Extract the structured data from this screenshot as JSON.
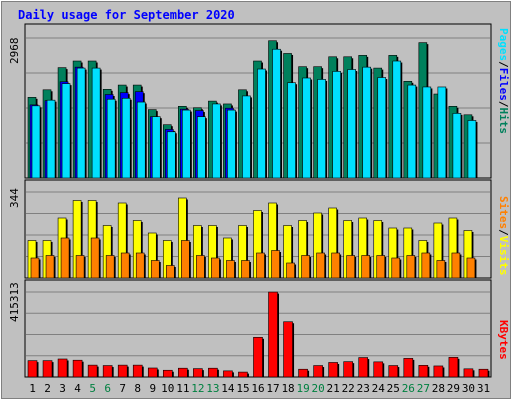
{
  "title": "Daily usage for September 2020",
  "colors": {
    "hits": "#00805c",
    "files": "#0000ff",
    "pages": "#00e0ff",
    "visits": "#ffff00",
    "sites": "#ff8000",
    "kbytes": "#ff0000",
    "weekend_label": "#008040",
    "weekday_label": "#000000",
    "plot_bg": "#c0c0c0",
    "grid": "#808080"
  },
  "panels": {
    "top": {
      "ymax_label": "2968",
      "right_labels": [
        "Pages",
        "Files",
        "Hits"
      ]
    },
    "middle": {
      "ymax_label": "344",
      "right_labels": [
        "Sites",
        "Visits"
      ]
    },
    "bottom": {
      "ymax_label": "415313",
      "right_labels": [
        "KBytes"
      ]
    }
  },
  "chart_data": [
    {
      "type": "bar",
      "title": "Daily usage for September 2020",
      "panel": "top",
      "categories": [
        "1",
        "2",
        "3",
        "4",
        "5",
        "6",
        "7",
        "8",
        "9",
        "10",
        "11",
        "12",
        "13",
        "14",
        "15",
        "16",
        "17",
        "18",
        "19",
        "20",
        "21",
        "22",
        "23",
        "24",
        "25",
        "26",
        "27",
        "28",
        "29",
        "30",
        "31"
      ],
      "ylim": [
        0,
        2968
      ],
      "series": [
        {
          "name": "Hits",
          "values": [
            1710,
            1870,
            2340,
            2480,
            2480,
            1880,
            1970,
            1970,
            1450,
            1130,
            1520,
            1490,
            1630,
            1570,
            1870,
            2480,
            2910,
            2640,
            2360,
            2360,
            2570,
            2570,
            2600,
            2330,
            2600,
            2050,
            2870,
            1780,
            1520,
            1340,
            0
          ]
        },
        {
          "name": "Files",
          "values": [
            1550,
            1640,
            2040,
            2350,
            0,
            1770,
            1810,
            1830,
            1300,
            1030,
            1460,
            1430,
            0,
            1480,
            0,
            0,
            0,
            0,
            0,
            0,
            0,
            0,
            0,
            0,
            0,
            0,
            0,
            0,
            0,
            0,
            0
          ]
        },
        {
          "name": "Pages",
          "values": [
            1530,
            1650,
            2000,
            2330,
            2330,
            1670,
            1690,
            1610,
            1300,
            980,
            1440,
            1300,
            1570,
            1440,
            1740,
            2310,
            2730,
            2020,
            2120,
            2090,
            2260,
            2300,
            2350,
            2130,
            2480,
            1970,
            1930,
            1930,
            1370,
            1220,
            0
          ]
        }
      ]
    },
    {
      "type": "bar",
      "panel": "middle",
      "categories": [
        "1",
        "2",
        "3",
        "4",
        "5",
        "6",
        "7",
        "8",
        "9",
        "10",
        "11",
        "12",
        "13",
        "14",
        "15",
        "16",
        "17",
        "18",
        "19",
        "20",
        "21",
        "22",
        "23",
        "24",
        "25",
        "26",
        "27",
        "28",
        "29",
        "30",
        "31"
      ],
      "ylim": [
        0,
        344
      ],
      "series": [
        {
          "name": "Visits",
          "values": [
            150,
            150,
            240,
            310,
            310,
            210,
            300,
            230,
            180,
            150,
            320,
            210,
            210,
            160,
            210,
            270,
            300,
            210,
            230,
            260,
            280,
            230,
            240,
            230,
            200,
            200,
            150,
            220,
            240,
            190,
            0
          ]
        },
        {
          "name": "Sites",
          "values": [
            80,
            90,
            160,
            90,
            160,
            90,
            100,
            100,
            70,
            50,
            150,
            90,
            80,
            70,
            70,
            100,
            110,
            60,
            90,
            100,
            100,
            90,
            90,
            90,
            80,
            90,
            100,
            70,
            100,
            80,
            0
          ]
        }
      ]
    },
    {
      "type": "bar",
      "panel": "bottom",
      "categories": [
        "1",
        "2",
        "3",
        "4",
        "5",
        "6",
        "7",
        "8",
        "9",
        "10",
        "11",
        "12",
        "13",
        "14",
        "15",
        "16",
        "17",
        "18",
        "19",
        "20",
        "21",
        "22",
        "23",
        "24",
        "25",
        "26",
        "27",
        "28",
        "29",
        "30",
        "31"
      ],
      "ylim": [
        0,
        415313
      ],
      "series": [
        {
          "name": "KBytes",
          "values": [
            80000,
            80000,
            88000,
            82000,
            58000,
            56000,
            58000,
            58000,
            44000,
            33000,
            43000,
            41000,
            43000,
            30000,
            24000,
            194000,
            415000,
            270000,
            38000,
            56000,
            71000,
            75000,
            95000,
            74000,
            56000,
            91000,
            57000,
            54000,
            96000,
            40000,
            38000
          ]
        }
      ]
    }
  ],
  "weekend_days": [
    "5",
    "6",
    "12",
    "13",
    "19",
    "20",
    "26",
    "27"
  ]
}
